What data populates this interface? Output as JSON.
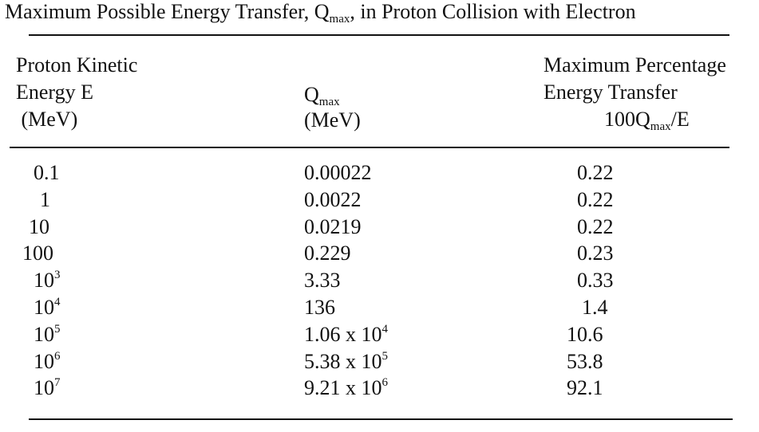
{
  "title": {
    "prefix": "Maximum Possible Energy Transfer, Q",
    "sub": "max",
    "suffix": ", in Proton Collision with Electron"
  },
  "headers": {
    "col1": [
      "Proton Kinetic",
      "Energy E",
      " (MeV)"
    ],
    "col2": {
      "q": "Q",
      "sub": "max",
      "unit": "(MeV)"
    },
    "col3": {
      "line1": "Maximum Percentage",
      "line2": "Energy Transfer",
      "line3_prefix": "100Q",
      "line3_sub": "max",
      "line3_suffix": "/E"
    }
  },
  "rows": [
    {
      "e_base": "0.1",
      "e_exp": "",
      "q_base": "0.00022",
      "q_exp": "",
      "pct": "0.22"
    },
    {
      "e_base": "1",
      "e_exp": "",
      "q_base": "0.0022",
      "q_exp": "",
      "pct": "0.22"
    },
    {
      "e_base": "10",
      "e_exp": "",
      "q_base": "0.0219",
      "q_exp": "",
      "pct": "0.22"
    },
    {
      "e_base": "100",
      "e_exp": "",
      "q_base": "0.229",
      "q_exp": "",
      "pct": "0.23"
    },
    {
      "e_base": "10",
      "e_exp": "3",
      "q_base": "3.33",
      "q_exp": "",
      "pct": "0.33"
    },
    {
      "e_base": "10",
      "e_exp": "4",
      "q_base": "136",
      "q_exp": "",
      "pct": "1.4"
    },
    {
      "e_base": "10",
      "e_exp": "5",
      "q_base": "1.06 x 10",
      "q_exp": "4",
      "pct": "10.6"
    },
    {
      "e_base": "10",
      "e_exp": "6",
      "q_base": "5.38 x 10",
      "q_exp": "5",
      "pct": "53.8"
    },
    {
      "e_base": "10",
      "e_exp": "7",
      "q_base": "9.21 x 10",
      "q_exp": "6",
      "pct": "92.1"
    }
  ]
}
